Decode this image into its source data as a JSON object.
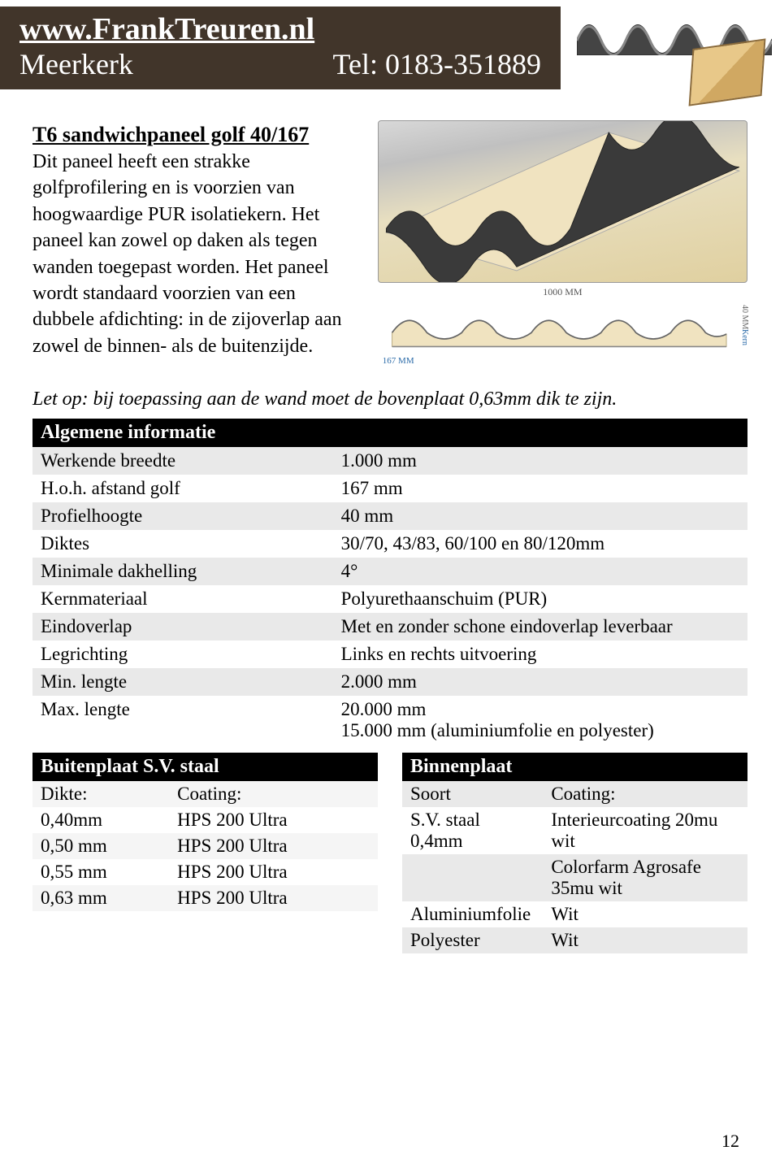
{
  "header": {
    "url": "www.FrankTreuren.nl",
    "city": "Meerkerk",
    "tel": "Tel: 0183-351889",
    "bg_color": "#41352a"
  },
  "intro": {
    "title": "T6 sandwichpaneel golf 40/167",
    "body": "Dit paneel heeft een strakke golfprofilering en is voorzien van hoogwaardige PUR isolatiekern. Het paneel kan zowel op daken als tegen wanden toegepast worden. Het paneel wordt standaard voorzien van een dubbele afdichting: in de zijoverlap aan zowel de binnen- als de buitenzijde."
  },
  "diagram": {
    "width_label": "1000 MM",
    "pitch_label": "167 MM",
    "height_label_right": "40 MM",
    "kern_label": "Kern",
    "panel_top_color": "#3a3a3a",
    "panel_foam_color": "#f0e3c0",
    "panel_bottom_color": "#c8c8c8"
  },
  "note": "Let op: bij toepassing aan de wand moet de bovenplaat 0,63mm dik te zijn.",
  "general": {
    "header": "Algemene informatie",
    "rows": [
      {
        "label": "Werkende breedte",
        "value": "1.000 mm"
      },
      {
        "label": "H.o.h. afstand golf",
        "value": "167 mm"
      },
      {
        "label": "Profielhoogte",
        "value": "40 mm"
      },
      {
        "label": "Diktes",
        "value": "30/70, 43/83, 60/100 en 80/120mm"
      },
      {
        "label": "Minimale dakhelling",
        "value": "4°"
      },
      {
        "label": "Kernmateriaal",
        "value": "Polyurethaanschuim (PUR)"
      },
      {
        "label": "Eindoverlap",
        "value": "Met en zonder schone eindoverlap leverbaar"
      },
      {
        "label": "Legrichting",
        "value": "Links en rechts uitvoering"
      },
      {
        "label": "Min. lengte",
        "value": "2.000 mm"
      },
      {
        "label": "Max. lengte",
        "value": "20.000 mm\n15.000 mm (aluminiumfolie en polyester)"
      }
    ]
  },
  "outer": {
    "header": "Buitenplaat S.V. staal",
    "col1": "Dikte:",
    "col2": "Coating:",
    "rows": [
      {
        "a": "0,40mm",
        "b": "HPS 200 Ultra"
      },
      {
        "a": "0,50 mm",
        "b": "HPS 200 Ultra"
      },
      {
        "a": "0,55 mm",
        "b": "HPS 200 Ultra"
      },
      {
        "a": "0,63 mm",
        "b": "HPS 200 Ultra"
      }
    ]
  },
  "inner": {
    "header": "Binnenplaat",
    "col1": "Soort",
    "col2": "Coating:",
    "rows": [
      {
        "a": "S.V. staal 0,4mm",
        "b": "Interieurcoating 20mu wit",
        "cls": "even"
      },
      {
        "a": "",
        "b": "Colorfarm Agrosafe 35mu wit",
        "cls": "odd"
      },
      {
        "a": "Aluminiumfolie",
        "b": "Wit",
        "cls": "even"
      },
      {
        "a": "Polyester",
        "b": "Wit",
        "cls": "odd"
      }
    ]
  },
  "page_number": "12"
}
